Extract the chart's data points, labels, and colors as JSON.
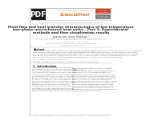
{
  "bg_color": "#ffffff",
  "pdf_icon_bg": "#1a1a1a",
  "pdf_text": "PDF",
  "pdf_text_color": "#ffffff",
  "title_line1": "Fluid flow and heat transfer characteristics of low temperature",
  "title_line2": "two-phase microchannel heat sinks – Part 1: Experimental",
  "title_line3": "methods and flow visualization results",
  "authors": "Jaeseon Lee, Issam Mudawar *",
  "sciencedirect_orange": "#e07020",
  "red_box_color": "#cc2200",
  "dark_box_color": "#444444",
  "text_dark": "#222222",
  "text_mid": "#555555",
  "text_light": "#888888",
  "line_color": "#bbbbbb",
  "border_color": "#aaaaaa"
}
